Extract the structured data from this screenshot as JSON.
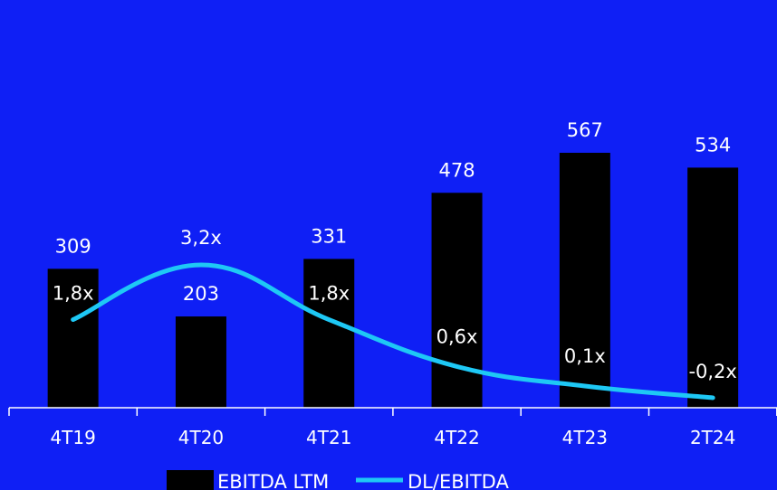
{
  "chart_data": {
    "type": "bar",
    "categories": [
      "4T19",
      "4T20",
      "4T21",
      "4T22",
      "4T23",
      "2T24"
    ],
    "series": [
      {
        "name": "EBITDA LTM",
        "type": "bar",
        "values": [
          309,
          203,
          331,
          478,
          567,
          534
        ],
        "labels": [
          "309",
          "203",
          "331",
          "478",
          "567",
          "534"
        ],
        "color": "#000000"
      },
      {
        "name": "DL/EBITDA",
        "type": "line",
        "values": [
          1.8,
          3.2,
          1.8,
          0.6,
          0.1,
          -0.2
        ],
        "labels": [
          "1,8x",
          "3,2x",
          "1,8x",
          "0,6x",
          "0,1x",
          "-0,2x"
        ],
        "color": "#1ec8f5"
      }
    ],
    "legend": {
      "position": "bottom"
    },
    "grid": false
  },
  "colors": {
    "background": "#0f1ff5",
    "bar": "#000000",
    "line": "#1ec8f5",
    "text": "#ffffff"
  }
}
